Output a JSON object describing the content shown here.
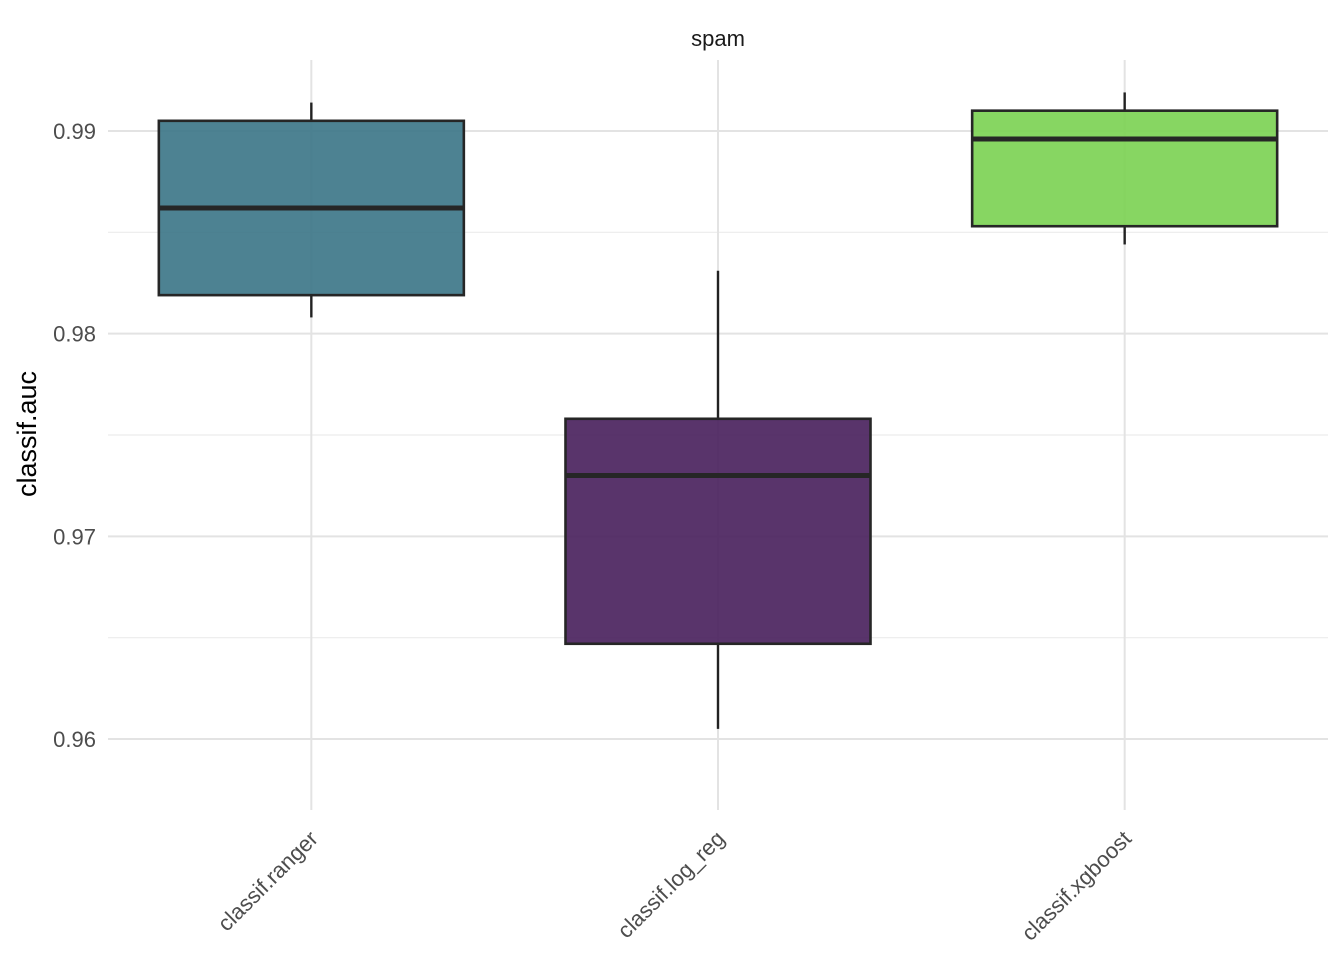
{
  "chart_data": {
    "type": "boxplot",
    "facet_title": "spam",
    "ylabel": "classif.auc",
    "xlabel": "",
    "ylim": [
      0.9565,
      0.9935
    ],
    "yticks": [
      0.96,
      0.97,
      0.98,
      0.99
    ],
    "ytick_labels": [
      "0.96",
      "0.97",
      "0.98",
      "0.99"
    ],
    "grid": true,
    "legend": "none",
    "categories": [
      "classif.ranger",
      "classif.log_reg",
      "classif.xgboost"
    ],
    "boxes": [
      {
        "category": "classif.ranger",
        "min": 0.9808,
        "q1": 0.9819,
        "median": 0.9862,
        "q3": 0.9905,
        "max": 0.9914,
        "color": "#3a7486"
      },
      {
        "category": "classif.log_reg",
        "min": 0.9605,
        "q1": 0.9647,
        "median": 0.973,
        "q3": 0.9758,
        "max": 0.9831,
        "color": "#471e5b"
      },
      {
        "category": "classif.xgboost",
        "min": 0.9844,
        "q1": 0.9853,
        "median": 0.9896,
        "q3": 0.991,
        "max": 0.9919,
        "color": "#7ad151"
      }
    ]
  }
}
